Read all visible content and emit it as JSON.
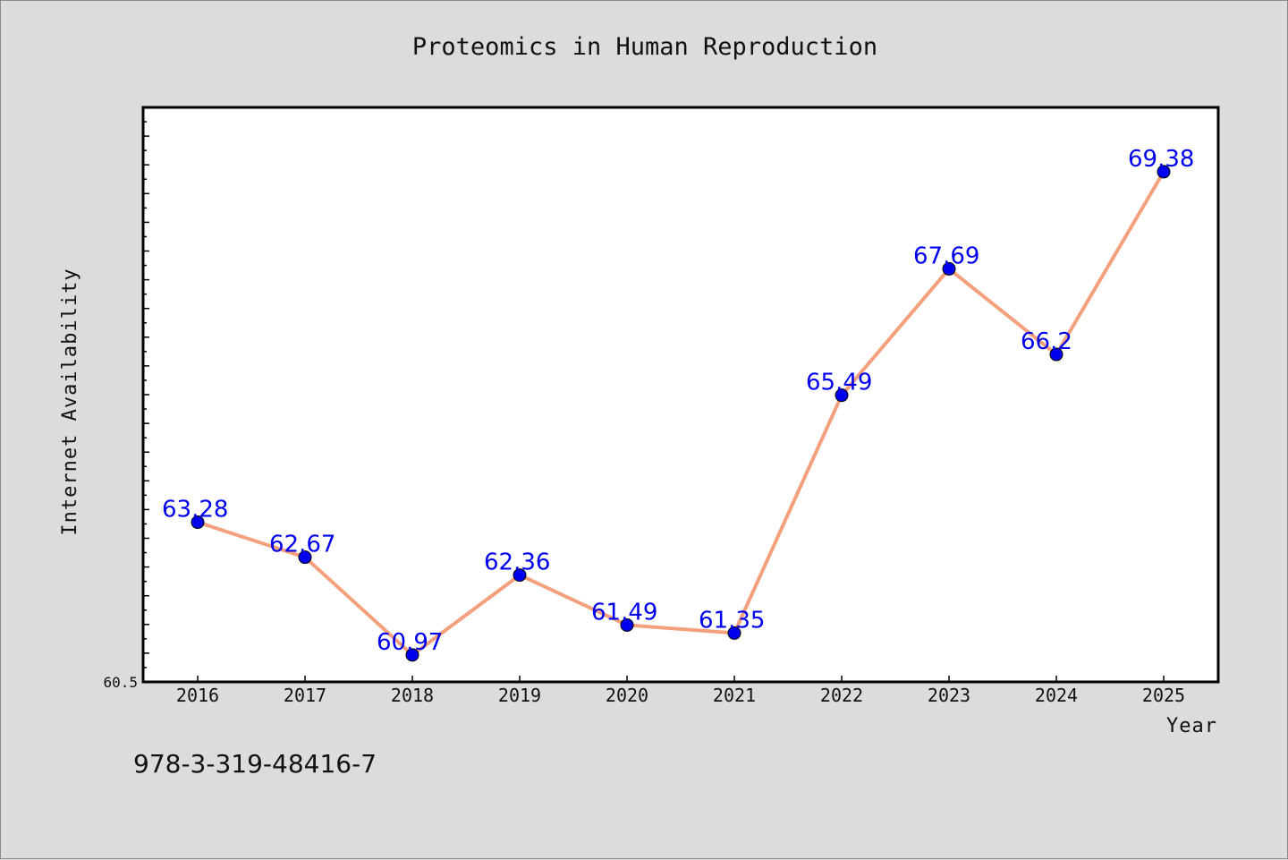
{
  "chart_data": {
    "type": "line",
    "title": "Proteomics in Human Reproduction",
    "xlabel": "Year",
    "ylabel": "Internet Availability",
    "categories": [
      "2016",
      "2017",
      "2018",
      "2019",
      "2020",
      "2021",
      "2022",
      "2023",
      "2024",
      "2025"
    ],
    "series": [
      {
        "values": [
          63.28,
          62.67,
          60.97,
          62.36,
          61.49,
          61.35,
          65.49,
          67.69,
          66.2,
          69.38
        ],
        "labels": [
          "63.28",
          "62.67",
          "60.97",
          "62.36",
          "61.49",
          "61.35",
          "65.49",
          "67.69",
          "66.2",
          "69.38"
        ]
      }
    ],
    "ylim": [
      60.5,
      70.5
    ],
    "y_tick_label": "60.5",
    "grid": false,
    "colors": {
      "line": "#f4a07c",
      "marker": "#0000ee",
      "data_label": "#0000ee",
      "plot_background": "#ffffff",
      "page_background": "#dcdcdc"
    }
  },
  "footer_text": "978-3-319-48416-7"
}
